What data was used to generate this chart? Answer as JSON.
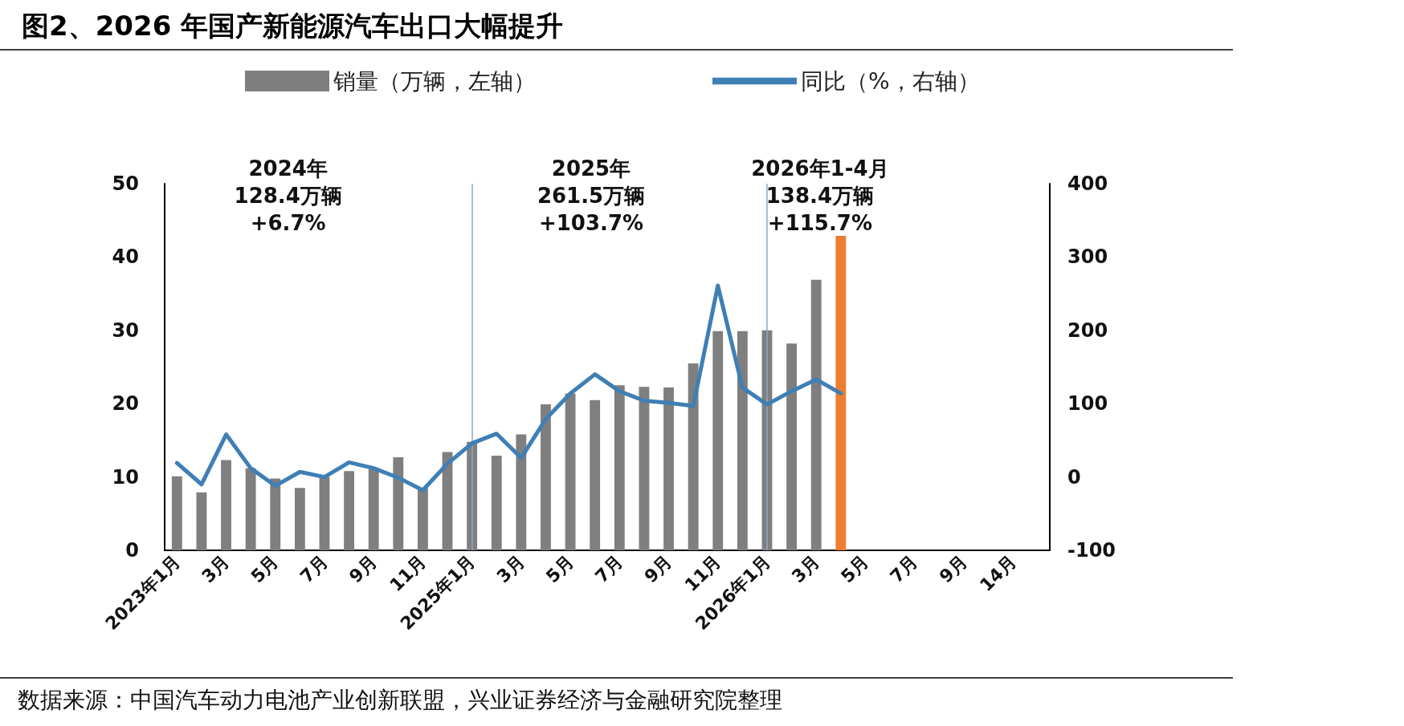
{
  "chart_data": {
    "type": "bar",
    "title": "图2、2026 年国产新能源汽车出口大幅提升",
    "categories": [
      "2023年1月",
      null,
      "3月",
      null,
      "5月",
      null,
      "7月",
      null,
      "9月",
      null,
      "11月",
      null,
      "2025年1月",
      null,
      "3月",
      null,
      "5月",
      null,
      "7月",
      null,
      "9月",
      null,
      "11月",
      null,
      "2026年1月",
      null,
      "3月",
      null,
      "5月",
      null,
      "7月",
      null,
      "9月",
      null,
      "14月",
      null
    ],
    "series": [
      {
        "name": "销量（万辆，左轴）",
        "color": "#7f7f7f",
        "colors": [
          "#7f7f7f",
          "#7f7f7f",
          "#7f7f7f",
          "#7f7f7f",
          "#7f7f7f",
          "#7f7f7f",
          "#7f7f7f",
          "#7f7f7f",
          "#7f7f7f",
          "#7f7f7f",
          "#7f7f7f",
          "#7f7f7f",
          "#7f7f7f",
          "#7f7f7f",
          "#7f7f7f",
          "#7f7f7f",
          "#7f7f7f",
          "#7f7f7f",
          "#7f7f7f",
          "#7f7f7f",
          "#7f7f7f",
          "#7f7f7f",
          "#7f7f7f",
          "#7f7f7f",
          "#7f7f7f",
          "#7f7f7f",
          "#7f7f7f",
          "#ed7d31",
          null,
          null,
          null,
          null,
          null,
          null,
          null,
          null
        ],
        "values": [
          10.1,
          7.9,
          12.3,
          11.2,
          9.8,
          8.5,
          10.0,
          10.8,
          11.1,
          12.7,
          8.5,
          13.4,
          14.8,
          12.9,
          15.8,
          19.9,
          21.4,
          20.5,
          22.5,
          22.3,
          22.2,
          25.5,
          29.9,
          29.9,
          30.0,
          28.2,
          36.9,
          42.9,
          null,
          null,
          null,
          null,
          null,
          null,
          null,
          null
        ]
      },
      {
        "name": "同比（%，右轴）",
        "type": "line",
        "axis": "y2",
        "color": "#3f7fb5",
        "values": [
          19,
          -10,
          58,
          12,
          -12,
          7,
          0,
          20,
          12,
          -1,
          -18,
          18,
          46,
          59,
          26,
          79,
          114,
          140,
          117,
          104,
          101,
          97,
          261,
          122,
          99,
          117,
          133,
          114,
          null,
          null,
          null,
          null,
          null,
          null,
          null,
          null
        ]
      }
    ],
    "ylim": [
      0,
      50
    ],
    "yticks": [
      0,
      10,
      20,
      30,
      40,
      50
    ],
    "y2lim": [
      -100,
      400
    ],
    "y2ticks": [
      -100,
      0,
      100,
      200,
      300,
      400
    ],
    "ref_lines": [
      {
        "axis": "x",
        "value": "2025年1月",
        "color": "#8fa8c0"
      },
      {
        "axis": "x",
        "value": "2026年1月",
        "color": "#8fa8c0"
      }
    ],
    "annotations": [
      "2024年\n128.4万辆\n+6.7%",
      "2025年\n261.5万辆\n+103.7%",
      "2026年1-4月\n138.4万辆\n+115.7%",
      "数据来源：中国汽车动力电池产业创新联盟，兴业证券经济与金融研究院整理"
    ],
    "grid": false,
    "legend": "top",
    "marker": "none",
    "line_style": "solid"
  }
}
